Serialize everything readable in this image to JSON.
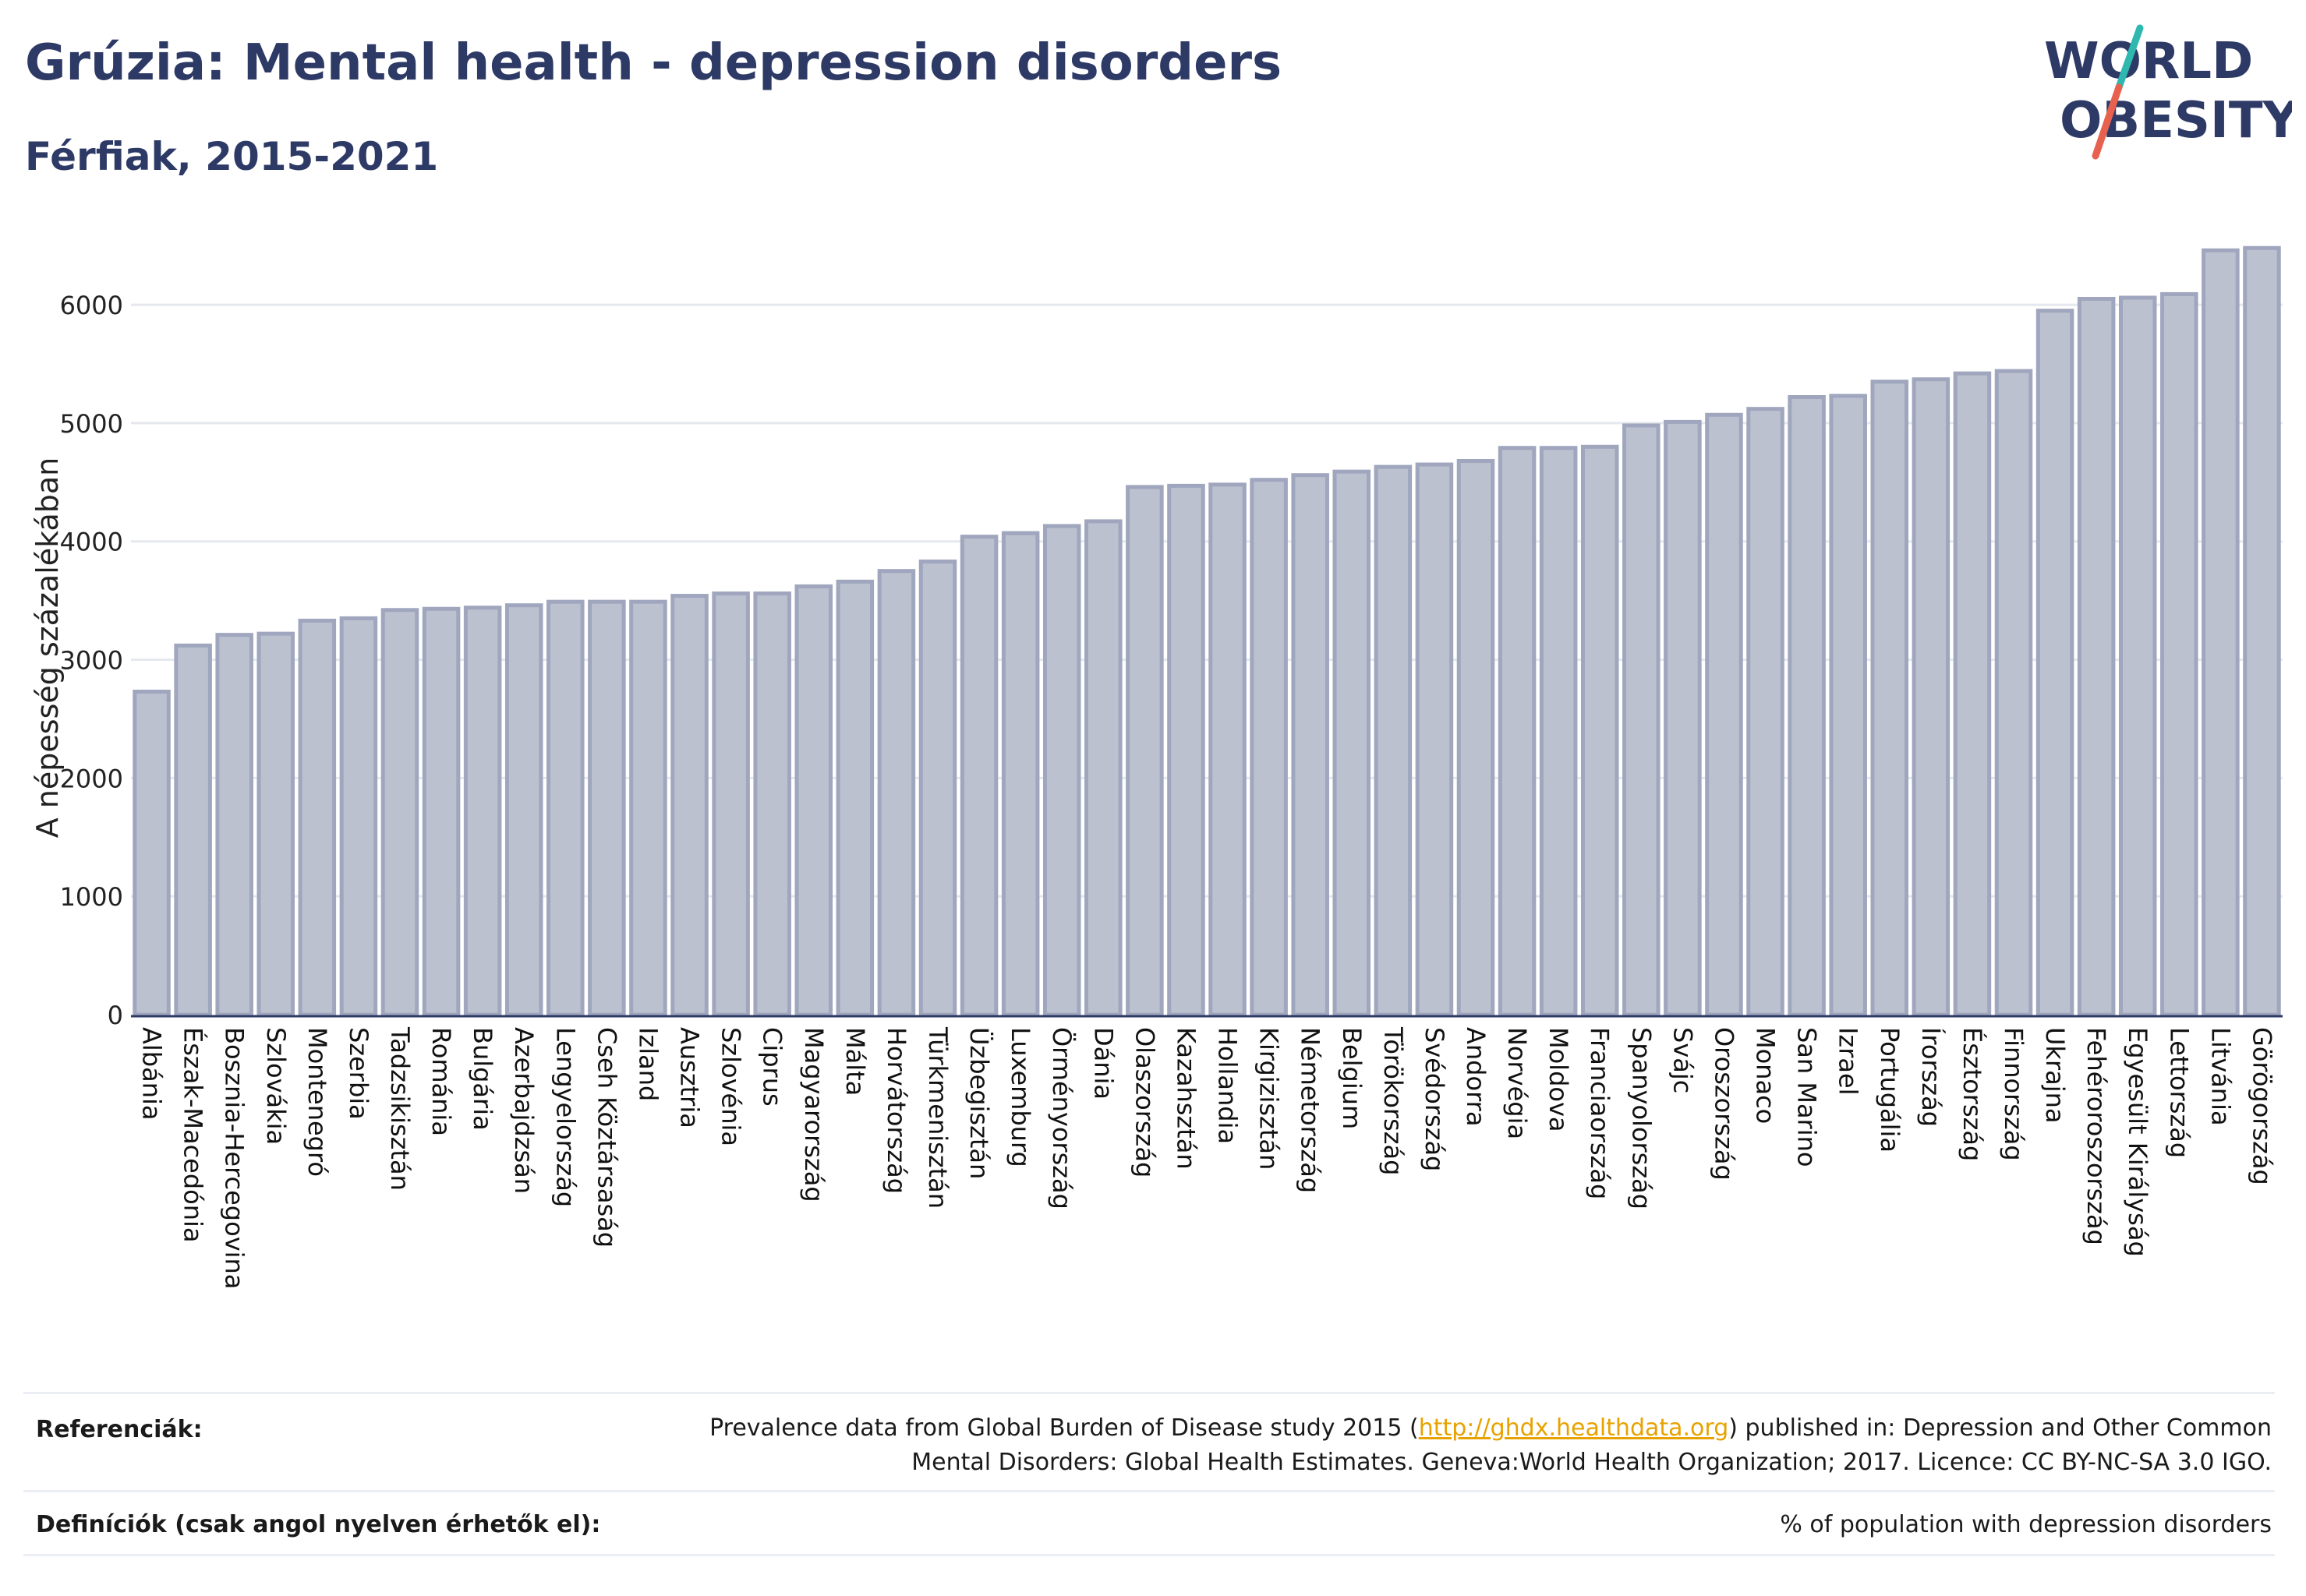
{
  "header": {
    "title": "Grúzia: Mental health - depression disorders",
    "subtitle": "Férfiak, 2015-2021"
  },
  "logo": {
    "line1": "WORLD",
    "line2": "OBESITY",
    "accent_colors": [
      "#2fb8b0",
      "#e8614f"
    ]
  },
  "chart_data": {
    "type": "bar",
    "ylabel": "A népesség százalékában",
    "ylim": [
      0,
      6600
    ],
    "yticks": [
      0,
      1000,
      2000,
      3000,
      4000,
      5000,
      6000
    ],
    "grid": true,
    "bar_color": "#bcc1d0",
    "bar_edge_color": "#9fa6bd",
    "categories": [
      "Albánia",
      "Észak-Macedónia",
      "Bosznia-Hercegovina",
      "Szlovákia",
      "Montenegró",
      "Szerbia",
      "Tadzsikisztán",
      "Románia",
      "Bulgária",
      "Azerbajdzsán",
      "Lengyelország",
      "Cseh Köztársaság",
      "Izland",
      "Ausztria",
      "Szlovénia",
      "Ciprus",
      "Magyarország",
      "Málta",
      "Horvátország",
      "Türkmenisztán",
      "Üzbegisztán",
      "Luxemburg",
      "Örményország",
      "Dánia",
      "Olaszország",
      "Kazahsztán",
      "Hollandia",
      "Kirgizisztán",
      "Németország",
      "Belgium",
      "Törökország",
      "Svédország",
      "Andorra",
      "Norvégia",
      "Moldova",
      "Franciaország",
      "Spanyolország",
      "Svájc",
      "Oroszország",
      "Monaco",
      "San Marino",
      "Izrael",
      "Portugália",
      "Írország",
      "Észtország",
      "Finnország",
      "Ukrajna",
      "Fehéroroszország",
      "Egyesült Királyság",
      "Lettország",
      "Litvánia",
      "Görögország"
    ],
    "values": [
      2730,
      3120,
      3210,
      3220,
      3330,
      3350,
      3420,
      3430,
      3440,
      3460,
      3490,
      3490,
      3490,
      3540,
      3560,
      3560,
      3620,
      3660,
      3750,
      3830,
      4040,
      4070,
      4130,
      4170,
      4460,
      4470,
      4480,
      4520,
      4560,
      4590,
      4630,
      4650,
      4680,
      4790,
      4790,
      4800,
      4980,
      5010,
      5070,
      5120,
      5220,
      5230,
      5350,
      5370,
      5420,
      5440,
      5950,
      6050,
      6060,
      6090,
      6460,
      6480
    ]
  },
  "footer": {
    "references_label": "Referenciák:",
    "references_text_1": "Prevalence data from Global Burden of Disease study 2015 (",
    "references_link": "http://ghdx.healthdata.org",
    "references_text_2": ") published in: Depression and Other Common",
    "references_text_3": "Mental Disorders: Global Health Estimates. Geneva:World Health Organization; 2017. Licence: CC BY-NC-SA 3.0 IGO.",
    "definitions_label": "Definíciók (csak angol nyelven érhetők el):",
    "definitions_text": "% of population with depression disorders"
  }
}
